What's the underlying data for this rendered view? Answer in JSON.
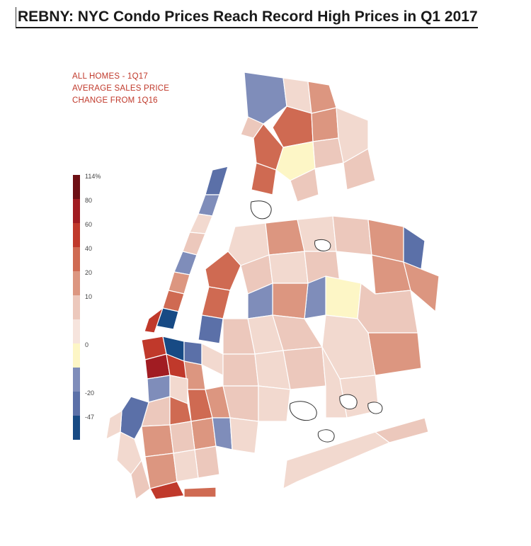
{
  "title": "REBNY: NYC Condo Prices Reach Record High Prices in Q1 2017",
  "legend": {
    "heading_lines": [
      "ALL HOMES - 1Q17",
      "AVERAGE SALES PRICE",
      "CHANGE FROM 1Q16"
    ],
    "stops": [
      {
        "label": "114%",
        "color": "#6e0f14"
      },
      {
        "label": "80",
        "color": "#a11c22"
      },
      {
        "label": "60",
        "color": "#c0392b"
      },
      {
        "label": "40",
        "color": "#cf6a52"
      },
      {
        "label": "20",
        "color": "#dc9680"
      },
      {
        "label": "10",
        "color": "#ecc8bc"
      },
      {
        "label": "",
        "color": "#f6e4dd"
      },
      {
        "label": "0",
        "color": "#fdf6c6"
      },
      {
        "label": "",
        "color": "#7f8dba"
      },
      {
        "label": "-20",
        "color": "#5b70a8"
      },
      {
        "label": "-47",
        "color": "#174a84"
      }
    ]
  },
  "map": {
    "fill_colors": {
      "dark_red": "#a11c22",
      "red": "#c0392b",
      "mid_red": "#cf6a52",
      "salmon": "#dc9680",
      "light_salmon": "#ecc8bc",
      "pale": "#f2d9cf",
      "yellow": "#fdf6c6",
      "light_blue": "#7f8dba",
      "blue": "#5b70a8",
      "dark_blue": "#174a84",
      "outline": "#ffffff",
      "coast": "#333333"
    }
  }
}
